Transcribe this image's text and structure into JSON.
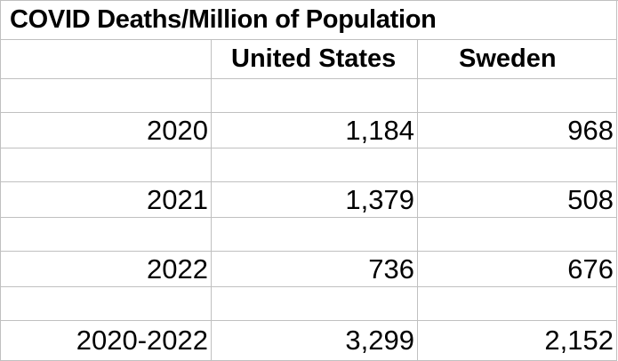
{
  "table": {
    "title": "COVID Deaths/Million of Population",
    "columns": [
      "",
      "United States",
      "Sweden"
    ],
    "rows": [
      {
        "label": "2020",
        "us": "1,184",
        "sweden": "968"
      },
      {
        "label": "2021",
        "us": "1,379",
        "sweden": "508"
      },
      {
        "label": "2022",
        "us": "736",
        "sweden": "676"
      },
      {
        "label": "2020-2022",
        "us": "3,299",
        "sweden": "2,152"
      }
    ]
  }
}
